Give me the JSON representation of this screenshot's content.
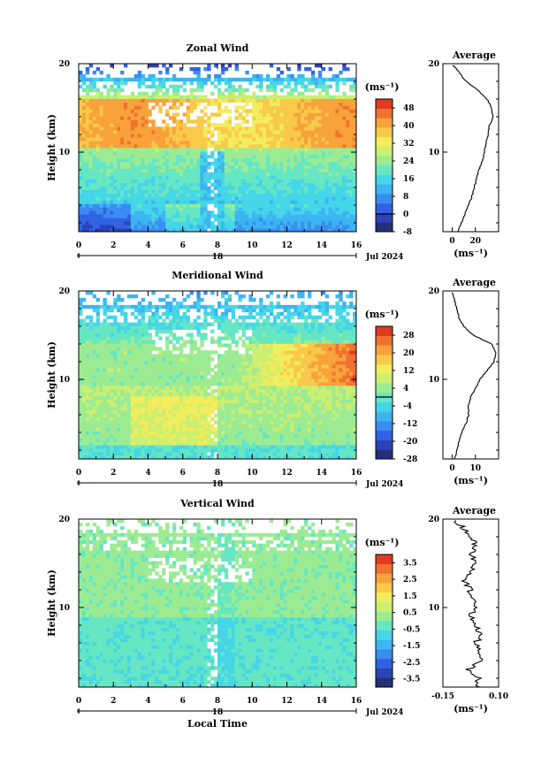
{
  "figure": {
    "date_label": "Jul 2024",
    "day_label": "18",
    "xlabel": "Local Time",
    "units_label": "(ms⁻¹)"
  },
  "chart_data": [
    {
      "type": "heatmap",
      "title": "Zonal Wind",
      "ylabel": "Height (km)",
      "xlabel": "Local Time",
      "xlim": [
        0,
        16
      ],
      "ylim": [
        1,
        20
      ],
      "xticks": [
        "0",
        "2",
        "4",
        "6",
        "8",
        "10",
        "12",
        "14",
        "16"
      ],
      "yticks": [
        "10",
        "20"
      ],
      "colorbar": {
        "units": "(ms⁻¹)",
        "ticks": [
          "48",
          "40",
          "32",
          "24",
          "16",
          "8",
          "0",
          "-8"
        ],
        "min": -8,
        "max": 52,
        "zero_line": 0
      },
      "profile": {
        "title": "Average",
        "xlim": [
          -8,
          40
        ],
        "xticks": [
          "0",
          "20"
        ],
        "xlabel": "(ms⁻¹)",
        "heights": [
          1,
          2,
          3,
          4,
          5,
          6,
          7,
          8,
          9,
          10,
          11,
          12,
          13,
          14,
          15,
          16,
          17,
          18,
          19,
          20
        ],
        "values": [
          5,
          8,
          11,
          14,
          17,
          19,
          21,
          23,
          26,
          28,
          29,
          31,
          32,
          35,
          34,
          30,
          22,
          12,
          6,
          0
        ]
      }
    },
    {
      "type": "heatmap",
      "title": "Meridional Wind",
      "ylabel": "Height (km)",
      "xlabel": "Local Time",
      "xlim": [
        0,
        16
      ],
      "ylim": [
        1,
        20
      ],
      "xticks": [
        "0",
        "2",
        "4",
        "6",
        "8",
        "10",
        "12",
        "14",
        "16"
      ],
      "yticks": [
        "10",
        "20"
      ],
      "colorbar": {
        "units": "(ms⁻¹)",
        "ticks": [
          "28",
          "20",
          "12",
          "4",
          "-4",
          "-12",
          "-20",
          "-28"
        ],
        "min": -28,
        "max": 32,
        "zero_line": 0
      },
      "profile": {
        "title": "Average",
        "xlim": [
          -4,
          20
        ],
        "xticks": [
          "0",
          "10"
        ],
        "xlabel": "(ms⁻¹)",
        "heights": [
          1,
          2,
          3,
          4,
          5,
          6,
          7,
          8,
          9,
          10,
          11,
          12,
          13,
          14,
          15,
          16,
          17,
          18,
          19,
          20
        ],
        "values": [
          1,
          2,
          3,
          4,
          6,
          7,
          7,
          8,
          10,
          12,
          15,
          18,
          19,
          17,
          9,
          5,
          3,
          2,
          1,
          0
        ]
      }
    },
    {
      "type": "heatmap",
      "title": "Vertical Wind",
      "ylabel": "Height (km)",
      "xlabel": "Local Time",
      "xlim": [
        0,
        16
      ],
      "ylim": [
        1,
        20
      ],
      "xticks": [
        "0",
        "2",
        "4",
        "6",
        "8",
        "10",
        "12",
        "14",
        "16"
      ],
      "yticks": [
        "10",
        "20"
      ],
      "colorbar": {
        "units": "(ms⁻¹)",
        "ticks": [
          "3.5",
          "2.5",
          "1.5",
          "0.5",
          "-0.5",
          "-1.5",
          "-2.5",
          "-3.5"
        ],
        "min": -4,
        "max": 4,
        "zero_line": null
      },
      "profile": {
        "title": "Average",
        "xlim": [
          -0.15,
          0.1
        ],
        "xticks": [
          "-0.15",
          "0.10"
        ],
        "xlabel": "(ms⁻¹)",
        "heights": [
          1,
          2,
          3,
          4,
          5,
          6,
          7,
          8,
          9,
          10,
          11,
          12,
          13,
          14,
          15,
          16,
          17,
          18,
          19,
          20
        ],
        "values": [
          0.0,
          0.01,
          -0.04,
          0.03,
          0.01,
          0.0,
          0.02,
          0.0,
          -0.02,
          -0.01,
          -0.02,
          -0.03,
          -0.05,
          -0.02,
          -0.01,
          -0.02,
          0.0,
          -0.03,
          -0.06,
          -0.1
        ]
      }
    }
  ]
}
